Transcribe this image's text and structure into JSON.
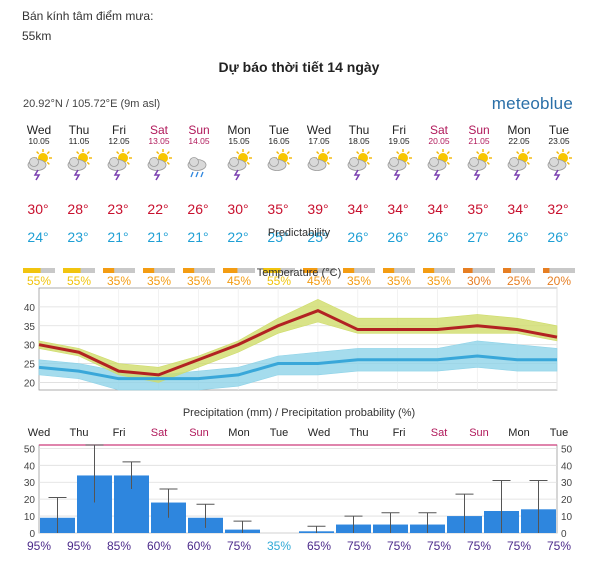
{
  "intro": {
    "label": "Bán kính tâm điểm mưa:",
    "value": "55km"
  },
  "heading": "Dự báo thời tiết 14 ngày",
  "widget": {
    "coords": "20.92°N / 105.72°E (9m asl)",
    "brand": "meteoblue",
    "predictability_label": "Predictability",
    "temperature_label": "Temperature (°C)",
    "precip_label": "Precipitation (mm) / Precipitation probability (%)"
  },
  "days": [
    {
      "dow": "Wed",
      "date": "10.05",
      "weekend": false,
      "icon": "thunderstorm-sun-icon",
      "tmax": "30°",
      "tmin": "24°",
      "pred": 55
    },
    {
      "dow": "Thu",
      "date": "11.05",
      "weekend": false,
      "icon": "thunderstorm-sun-icon",
      "tmax": "28°",
      "tmin": "23°",
      "pred": 55
    },
    {
      "dow": "Fri",
      "date": "12.05",
      "weekend": false,
      "icon": "thunderstorm-sun-icon",
      "tmax": "23°",
      "tmin": "21°",
      "pred": 35
    },
    {
      "dow": "Sat",
      "date": "13.05",
      "weekend": true,
      "icon": "thunderstorm-sun-icon",
      "tmax": "22°",
      "tmin": "21°",
      "pred": 35
    },
    {
      "dow": "Sun",
      "date": "14.05",
      "weekend": true,
      "icon": "rain-cloud-icon",
      "tmax": "26°",
      "tmin": "21°",
      "pred": 35
    },
    {
      "dow": "Mon",
      "date": "15.05",
      "weekend": false,
      "icon": "thunderstorm-sun-icon",
      "tmax": "30°",
      "tmin": "22°",
      "pred": 45
    },
    {
      "dow": "Tue",
      "date": "16.05",
      "weekend": false,
      "icon": "partly-cloudy-icon",
      "tmax": "35°",
      "tmin": "25°",
      "pred": 55
    },
    {
      "dow": "Wed",
      "date": "17.05",
      "weekend": false,
      "icon": "partly-cloudy-icon",
      "tmax": "39°",
      "tmin": "25°",
      "pred": 45
    },
    {
      "dow": "Thu",
      "date": "18.05",
      "weekend": false,
      "icon": "thunderstorm-sun-icon",
      "tmax": "34°",
      "tmin": "26°",
      "pred": 35
    },
    {
      "dow": "Fri",
      "date": "19.05",
      "weekend": false,
      "icon": "thunderstorm-sun-icon",
      "tmax": "34°",
      "tmin": "26°",
      "pred": 35
    },
    {
      "dow": "Sat",
      "date": "20.05",
      "weekend": true,
      "icon": "thunderstorm-sun-icon",
      "tmax": "34°",
      "tmin": "26°",
      "pred": 35
    },
    {
      "dow": "Sun",
      "date": "21.05",
      "weekend": true,
      "icon": "thunderstorm-sun-icon",
      "tmax": "35°",
      "tmin": "27°",
      "pred": 30
    },
    {
      "dow": "Mon",
      "date": "22.05",
      "weekend": false,
      "icon": "thunderstorm-sun-icon",
      "tmax": "34°",
      "tmin": "26°",
      "pred": 25
    },
    {
      "dow": "Tue",
      "date": "23.05",
      "weekend": false,
      "icon": "thunderstorm-sun-icon",
      "tmax": "32°",
      "tmin": "26°",
      "pred": 20
    }
  ],
  "colors": {
    "weekend": "#b0185a",
    "weekday": "#222222",
    "tmax": "#c8102e",
    "tmin": "#1f9fd4",
    "pred_high": "#f1c40f",
    "pred_mid": "#f39c12",
    "pred_low": "#e67e22",
    "pred_empty": "#c8c8c8",
    "temp_line": "#b22222",
    "temp_max_band": "#cfdc6a",
    "temp_min_line": "#39a7d9",
    "temp_min_band": "#8fd3e8",
    "precip_bar": "#2e86de",
    "prob_high": "#4b2a8a",
    "prob_low": "#31a9d6"
  },
  "chart_data": [
    {
      "type": "line",
      "title": "Temperature (°C)",
      "x": [
        "Wed 10.05",
        "Thu 11.05",
        "Fri 12.05",
        "Sat 13.05",
        "Sun 14.05",
        "Mon 15.05",
        "Tue 16.05",
        "Wed 17.05",
        "Thu 18.05",
        "Fri 19.05",
        "Sat 20.05",
        "Sun 21.05",
        "Mon 22.05",
        "Tue 23.05"
      ],
      "series": [
        {
          "name": "Max temperature",
          "values": [
            30,
            28,
            23,
            22,
            26,
            30,
            35,
            39,
            34,
            34,
            34,
            35,
            34,
            32
          ],
          "band_low": [
            29,
            27,
            22,
            20,
            24,
            28,
            33,
            36,
            33,
            33,
            33,
            33,
            33,
            31
          ],
          "band_high": [
            31,
            29,
            25,
            24,
            27,
            31,
            37,
            42,
            37,
            37,
            37,
            38,
            37,
            35
          ]
        },
        {
          "name": "Min temperature",
          "values": [
            24,
            23,
            21,
            21,
            21,
            22,
            25,
            25,
            26,
            26,
            26,
            27,
            26,
            26
          ],
          "band_low": [
            22,
            21,
            18,
            18,
            18,
            19,
            22,
            22,
            23,
            23,
            23,
            24,
            23,
            23
          ],
          "band_high": [
            26,
            25,
            23,
            22,
            23,
            24,
            27,
            28,
            29,
            29,
            29,
            31,
            30,
            29
          ]
        }
      ],
      "yticks": [
        20,
        25,
        30,
        35,
        40
      ],
      "ylim": [
        18,
        45
      ],
      "grid": true
    },
    {
      "type": "bar",
      "title": "Precipitation (mm) / Precipitation probability (%)",
      "categories": [
        "Wed",
        "Thu",
        "Fri",
        "Sat",
        "Sun",
        "Mon",
        "Tue",
        "Wed",
        "Thu",
        "Fri",
        "Sat",
        "Sun",
        "Mon",
        "Tue"
      ],
      "values": [
        9,
        34,
        34,
        18,
        9,
        2,
        0,
        1,
        5,
        5,
        5,
        10,
        13,
        14
      ],
      "range_low": [
        0,
        18,
        26,
        9,
        3,
        0,
        0,
        0,
        0,
        0,
        0,
        0,
        0,
        0
      ],
      "range_high": [
        21,
        52,
        42,
        26,
        17,
        7,
        0,
        4,
        10,
        12,
        12,
        23,
        31,
        31
      ],
      "probability": [
        "95%",
        "95%",
        "85%",
        "60%",
        "60%",
        "75%",
        "35%",
        "65%",
        "75%",
        "75%",
        "75%",
        "75%",
        "75%",
        "75%"
      ],
      "yticks": [
        0,
        10,
        20,
        30,
        40,
        50
      ],
      "ylim": [
        0,
        52
      ],
      "grid": true
    }
  ]
}
